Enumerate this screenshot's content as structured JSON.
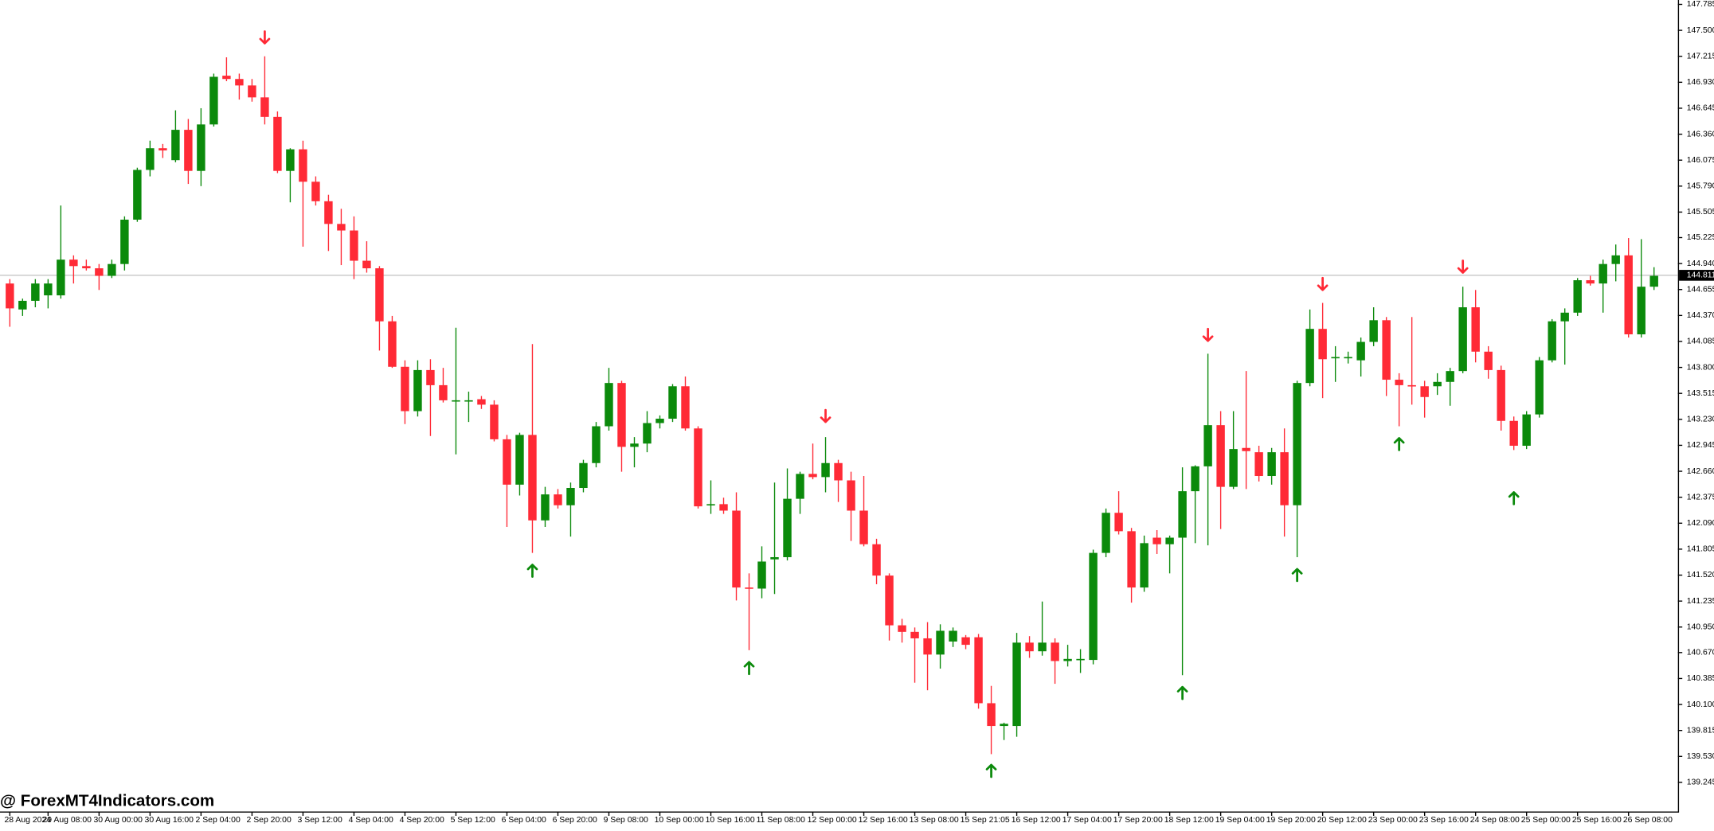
{
  "chart_data": {
    "type": "candlestick",
    "watermark": "@ ForexMT4Indicators.com",
    "up_color": "#0b8a0b",
    "down_color": "#ff2a36",
    "last_price": 144.811,
    "ylim": [
      138.925,
      147.833
    ],
    "yticks": [
      147.785,
      {
        "value": 147.5,
        "label": "147.500"
      },
      147.215,
      {
        "value": 146.93,
        "label": "146.930"
      },
      146.645,
      {
        "value": 146.36,
        "label": "146.360"
      },
      146.075,
      {
        "value": 145.79,
        "label": "145.790"
      },
      145.505,
      145.225,
      {
        "value": 144.94,
        "label": "144.940"
      },
      144.655,
      {
        "value": 144.37,
        "label": "144.370"
      },
      144.085,
      {
        "value": 143.8,
        "label": "143.800"
      },
      143.515,
      {
        "value": 143.23,
        "label": "143.230"
      },
      142.945,
      {
        "value": 142.66,
        "label": "142.660"
      },
      142.375,
      {
        "value": 142.09,
        "label": "142.090"
      },
      141.805,
      {
        "value": 141.52,
        "label": "141.520"
      },
      141.235,
      {
        "value": 140.95,
        "label": "140.950"
      },
      {
        "value": 140.67,
        "label": "140.670"
      },
      140.385,
      {
        "value": 140.1,
        "label": "140.100"
      },
      139.815,
      {
        "value": 139.53,
        "label": "139.530"
      },
      139.245
    ],
    "categories": [
      "28 Aug 2024",
      null,
      null,
      "29 Aug 08:00",
      null,
      null,
      null,
      "30 Aug 00:00",
      null,
      null,
      null,
      "30 Aug 16:00",
      null,
      null,
      null,
      "2 Sep 04:00",
      null,
      null,
      null,
      "2 Sep 20:00",
      null,
      null,
      null,
      "3 Sep 12:00",
      null,
      null,
      null,
      "4 Sep 04:00",
      null,
      null,
      null,
      "4 Sep 20:00",
      null,
      null,
      null,
      "5 Sep 12:00",
      null,
      null,
      null,
      "6 Sep 04:00",
      null,
      null,
      null,
      "6 Sep 20:00",
      null,
      null,
      null,
      "9 Sep 08:00",
      null,
      null,
      null,
      "10 Sep 00:00",
      null,
      null,
      null,
      "10 Sep 16:00",
      null,
      null,
      null,
      "11 Sep 08:00",
      null,
      null,
      null,
      "12 Sep 00:00",
      null,
      null,
      null,
      "12 Sep 16:00",
      null,
      null,
      null,
      "13 Sep 08:00",
      null,
      null,
      null,
      "15 Sep 21:05",
      null,
      null,
      null,
      "16 Sep 12:00",
      null,
      null,
      null,
      "17 Sep 04:00",
      null,
      null,
      null,
      "17 Sep 20:00",
      null,
      null,
      null,
      "18 Sep 12:00",
      null,
      null,
      null,
      "19 Sep 04:00",
      null,
      null,
      null,
      "19 Sep 20:00",
      null,
      null,
      null,
      "20 Sep 12:00",
      null,
      null,
      null,
      "23 Sep 00:00",
      null,
      null,
      null,
      "23 Sep 16:00",
      null,
      null,
      null,
      "24 Sep 08:00",
      null,
      null,
      null,
      "25 Sep 00:00",
      null,
      null,
      null,
      "25 Sep 16:00",
      null,
      null,
      null,
      "26 Sep 08:00",
      null,
      null
    ],
    "open": [
      144.721,
      144.436,
      144.531,
      144.591,
      144.591,
      144.983,
      144.912,
      144.888,
      144.805,
      144.935,
      145.422,
      145.968,
      146.206,
      146.075,
      146.408,
      145.957,
      146.467,
      147.002,
      146.966,
      146.895,
      146.764,
      146.55,
      145.957,
      146.194,
      145.838,
      145.624,
      145.375,
      145.303,
      144.971,
      144.888,
      144.306,
      143.807,
      143.32,
      143.771,
      143.605,
      143.427,
      143.427,
      143.451,
      143.391,
      143.011,
      142.513,
      143.059,
      142.121,
      142.406,
      142.287,
      142.477,
      142.75,
      143.154,
      143.629,
      142.928,
      142.964,
      143.189,
      143.237,
      143.593,
      143.13,
      142.287,
      142.299,
      142.228,
      141.384,
      141.372,
      141.693,
      141.717,
      142.358,
      142.631,
      142.596,
      142.75,
      142.56,
      142.228,
      141.859,
      141.515,
      140.969,
      140.897,
      140.826,
      140.648,
      140.791,
      140.838,
      140.838,
      140.114,
      139.864,
      139.864,
      140.779,
      140.684,
      140.779,
      140.577,
      140.589,
      140.589,
      141.764,
      142.204,
      142.002,
      141.384,
      141.931,
      141.859,
      141.931,
      142.441,
      142.714,
      143.166,
      142.489,
      142.916,
      142.869,
      142.608,
      142.869,
      142.287,
      143.629,
      144.223,
      143.902,
      143.902,
      143.878,
      144.08,
      144.318,
      143.665,
      143.605,
      143.593,
      143.593,
      143.641,
      143.76,
      144.46,
      143.973,
      143.771,
      143.213,
      142.94,
      143.284,
      143.878,
      144.306,
      144.401,
      144.757,
      144.721,
      144.935,
      145.03,
      144.163,
      144.686
    ],
    "high": [
      144.769,
      144.555,
      144.769,
      144.769,
      145.577,
      145.03,
      144.983,
      144.935,
      144.983,
      145.458,
      145.992,
      146.289,
      146.253,
      146.622,
      146.527,
      146.645,
      147.025,
      147.204,
      147.025,
      146.966,
      147.215,
      146.61,
      146.206,
      146.289,
      145.897,
      145.695,
      145.541,
      145.458,
      145.185,
      144.912,
      144.365,
      143.878,
      143.878,
      143.89,
      143.795,
      144.235,
      143.534,
      143.486,
      143.439,
      143.059,
      143.083,
      144.056,
      142.489,
      142.465,
      142.536,
      142.786,
      143.201,
      143.795,
      143.653,
      143.035,
      143.32,
      143.273,
      143.617,
      143.7,
      143.154,
      142.56,
      142.37,
      142.429,
      141.539,
      141.836,
      142.536,
      142.691,
      142.655,
      142.964,
      143.035,
      142.786,
      142.655,
      142.608,
      141.919,
      141.539,
      141.04,
      140.945,
      141.004,
      140.98,
      140.945,
      140.862,
      140.874,
      140.304,
      139.9,
      140.886,
      140.85,
      141.23,
      140.826,
      140.755,
      140.707,
      141.8,
      142.251,
      142.441,
      142.038,
      141.954,
      142.014,
      141.954,
      142.703,
      142.726,
      143.95,
      143.32,
      143.32,
      143.76,
      142.94,
      142.916,
      143.13,
      143.653,
      144.436,
      144.508,
      144.033,
      143.973,
      144.128,
      144.46,
      144.353,
      143.736,
      144.353,
      143.653,
      143.736,
      143.795,
      144.686,
      144.65,
      144.033,
      143.819,
      143.261,
      143.32,
      143.914,
      144.33,
      144.448,
      144.781,
      144.805,
      144.983,
      145.149,
      145.22,
      145.208,
      144.9
    ],
    "low": [
      144.246,
      144.365,
      144.46,
      144.448,
      144.555,
      144.721,
      144.864,
      144.65,
      144.781,
      144.864,
      145.398,
      145.897,
      146.099,
      146.052,
      145.814,
      145.79,
      146.444,
      146.942,
      146.74,
      146.717,
      146.467,
      145.933,
      145.612,
      145.125,
      145.577,
      145.078,
      144.923,
      144.769,
      144.84,
      143.985,
      143.795,
      143.178,
      143.261,
      143.047,
      143.415,
      142.845,
      143.201,
      143.344,
      142.988,
      142.049,
      142.394,
      141.764,
      142.049,
      142.251,
      141.943,
      142.429,
      142.703,
      143.106,
      142.655,
      142.703,
      142.869,
      143.13,
      143.201,
      143.106,
      142.251,
      142.192,
      142.192,
      141.242,
      140.696,
      141.266,
      141.313,
      141.681,
      142.192,
      142.572,
      142.429,
      142.323,
      141.895,
      141.836,
      141.42,
      140.802,
      140.779,
      140.339,
      140.256,
      140.494,
      140.731,
      140.707,
      140.054,
      139.555,
      139.71,
      139.745,
      140.612,
      140.636,
      140.327,
      140.517,
      140.446,
      140.541,
      141.717,
      141.966,
      141.218,
      141.337,
      141.752,
      141.539,
      140.422,
      141.871,
      141.847,
      142.026,
      142.465,
      142.465,
      142.548,
      142.513,
      141.943,
      141.717,
      143.593,
      143.463,
      143.641,
      143.843,
      143.7,
      144.033,
      143.486,
      143.154,
      143.391,
      143.249,
      143.498,
      143.379,
      143.736,
      143.855,
      143.676,
      143.106,
      142.893,
      142.904,
      143.249,
      143.855,
      143.831,
      144.365,
      144.698,
      144.401,
      144.745,
      144.128,
      144.128,
      144.65
    ],
    "close": [
      144.448,
      144.531,
      144.721,
      144.721,
      144.983,
      144.912,
      144.888,
      144.805,
      144.935,
      145.422,
      145.968,
      146.206,
      146.182,
      146.408,
      145.957,
      146.467,
      146.99,
      146.966,
      146.895,
      146.764,
      146.55,
      145.957,
      146.194,
      145.838,
      145.624,
      145.375,
      145.303,
      144.971,
      144.888,
      144.306,
      143.807,
      143.32,
      143.771,
      143.605,
      143.439,
      143.439,
      143.439,
      143.391,
      143.011,
      142.513,
      143.059,
      142.121,
      142.406,
      142.287,
      142.477,
      142.75,
      143.154,
      143.629,
      142.928,
      142.964,
      143.189,
      143.237,
      143.593,
      143.13,
      142.275,
      142.299,
      142.228,
      141.384,
      141.372,
      141.669,
      141.717,
      142.358,
      142.631,
      142.596,
      142.75,
      142.56,
      142.228,
      141.859,
      141.515,
      140.969,
      140.897,
      140.826,
      140.648,
      140.909,
      140.909,
      140.755,
      140.114,
      139.864,
      139.888,
      140.779,
      140.684,
      140.779,
      140.577,
      140.6,
      140.6,
      141.764,
      142.204,
      142.002,
      141.384,
      141.871,
      141.859,
      141.931,
      142.441,
      142.714,
      143.166,
      142.489,
      142.904,
      142.881,
      142.608,
      142.869,
      142.287,
      143.629,
      144.223,
      143.89,
      143.914,
      143.914,
      144.08,
      144.318,
      143.665,
      143.605,
      143.593,
      143.475,
      143.641,
      143.76,
      144.46,
      143.973,
      143.771,
      143.213,
      142.94,
      143.284,
      143.878,
      144.306,
      144.401,
      144.757,
      144.721,
      144.935,
      145.03,
      144.163,
      144.686,
      144.805
    ],
    "sell_signals": {
      "index": [
        20,
        64,
        94,
        103,
        114
      ],
      "price": [
        147.417,
        143.261,
        144.151,
        144.71,
        144.9
      ]
    },
    "buy_signals": {
      "index": [
        41,
        58,
        77,
        92,
        101,
        109,
        118
      ],
      "price": [
        141.574,
        140.506,
        139.377,
        140.232,
        141.527,
        142.964,
        142.37
      ]
    }
  }
}
